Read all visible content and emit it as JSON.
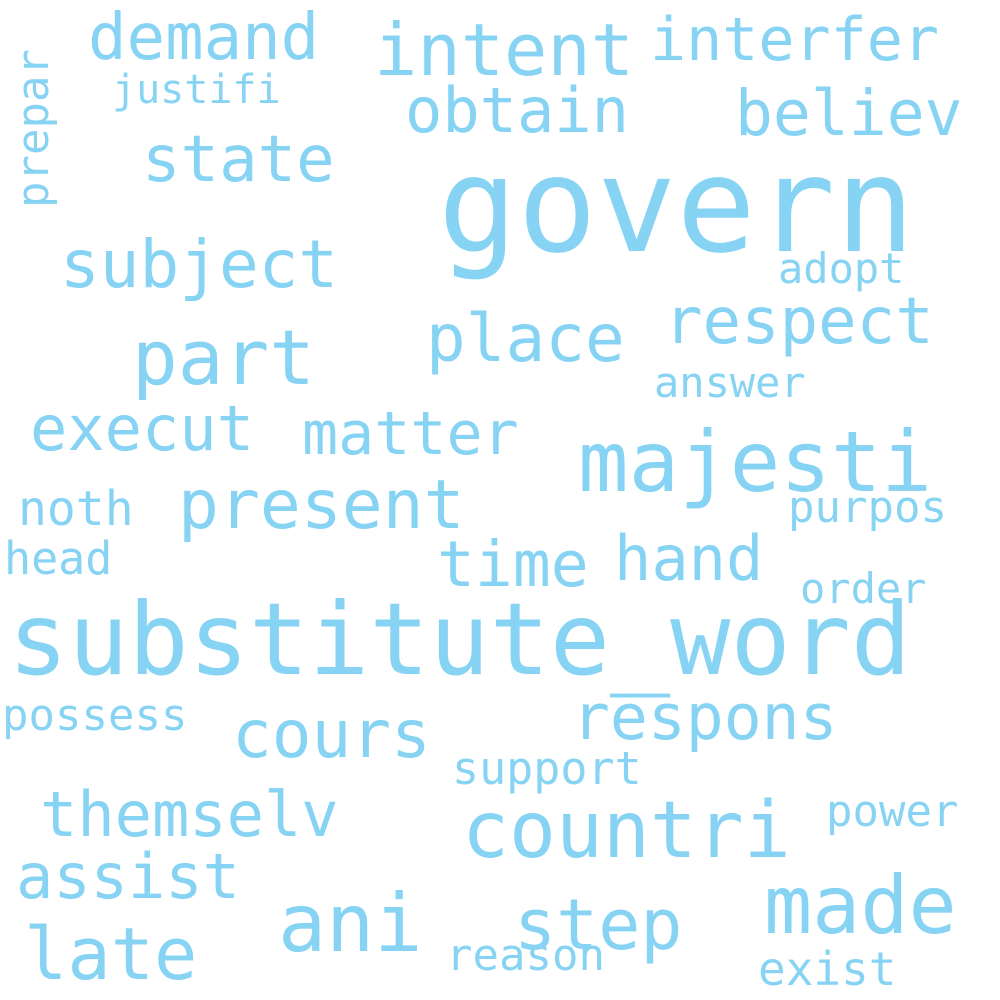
{
  "words": [
    "govern",
    "substitute_word",
    "majesti",
    "countri",
    "present",
    "respons",
    "made",
    "intent",
    "interfer",
    "demand",
    "state",
    "obtain",
    "believ",
    "subject",
    "place",
    "respect",
    "part",
    "execut",
    "matter",
    "hand",
    "time",
    "cours",
    "themselv",
    "ani",
    "step",
    "assist",
    "late",
    "noth",
    "head",
    "possess",
    "support",
    "power",
    "reason",
    "exist",
    "order",
    "purpos",
    "answer",
    "adopt",
    "justifi",
    "prepar"
  ],
  "colors": {
    "text": "#87d3f3",
    "background": "#ffffff"
  }
}
